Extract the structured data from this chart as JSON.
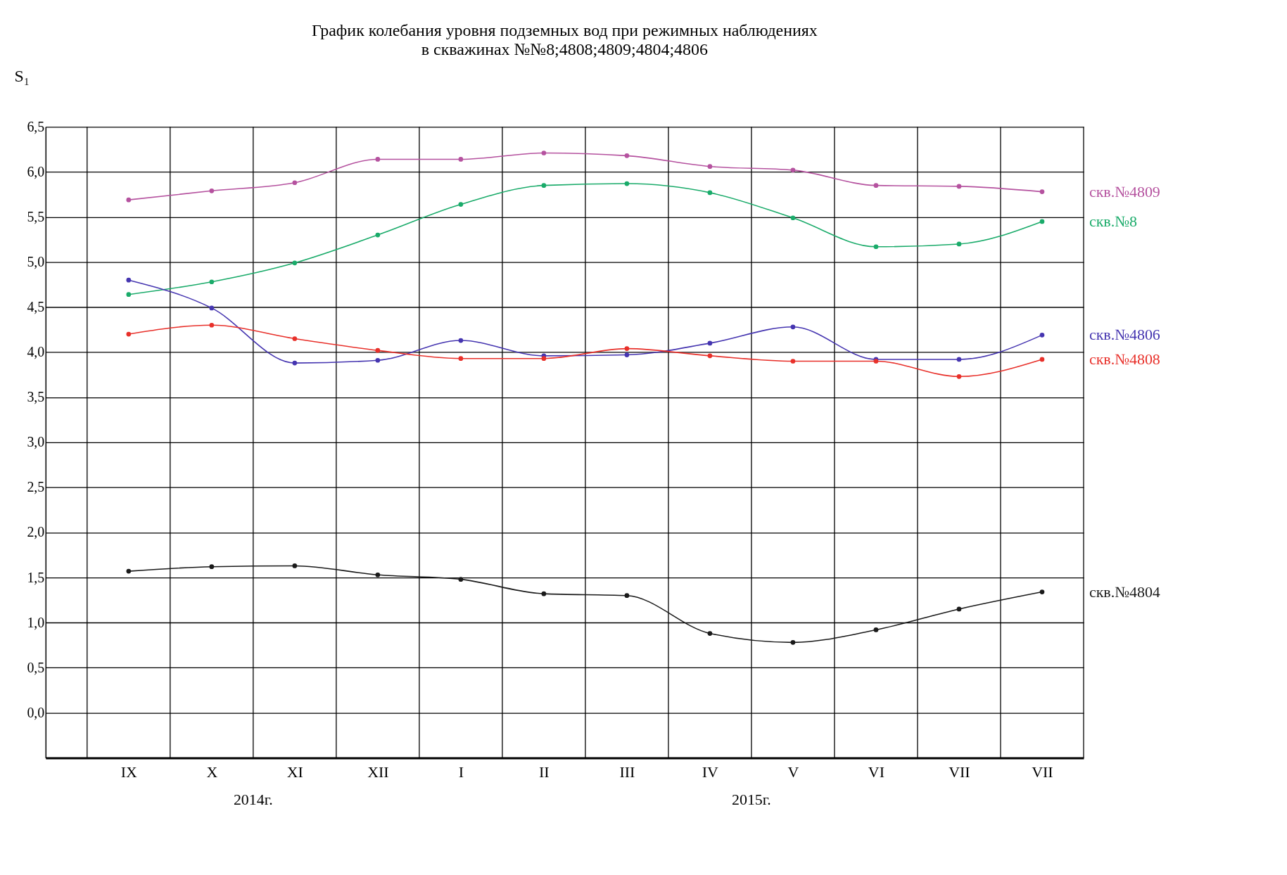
{
  "chart_data": {
    "type": "line",
    "title": "График колебания уровня подземных вод при режимных наблюдениях",
    "subtitle": "в скважинах №№8;4808;4809;4804;4806",
    "ylabel": "S₁",
    "categories": [
      "IX",
      "X",
      "XI",
      "XII",
      "I",
      "II",
      "III",
      "IV",
      "V",
      "VI",
      "VII",
      "VII"
    ],
    "ylim": [
      -0.5,
      6.5
    ],
    "yticks": [
      {
        "value": 0,
        "label": "0,0"
      },
      {
        "value": 0.5,
        "label": "0,5"
      },
      {
        "value": 1,
        "label": "1,0"
      },
      {
        "value": 1.5,
        "label": "1,5"
      },
      {
        "value": 2,
        "label": "2,0"
      },
      {
        "value": 2.5,
        "label": "2,5"
      },
      {
        "value": 3,
        "label": "3,0"
      },
      {
        "value": 3.5,
        "label": "3,5"
      },
      {
        "value": 4,
        "label": "4,0"
      },
      {
        "value": 4.5,
        "label": "4,5"
      },
      {
        "value": 5,
        "label": "5,0"
      },
      {
        "value": 5.5,
        "label": "5,5"
      },
      {
        "value": 6,
        "label": "6,0"
      },
      {
        "value": 6.5,
        "label": "6,5"
      }
    ],
    "grid": true,
    "marker": "circle",
    "line_style": "solid",
    "annotations": [
      "2014г.",
      "2015г."
    ],
    "series": [
      {
        "name": "скв.№4809",
        "color": "#b5529f",
        "values": [
          5.69,
          5.79,
          5.88,
          6.14,
          6.14,
          6.21,
          6.18,
          6.06,
          6.02,
          5.85,
          5.84,
          5.78
        ]
      },
      {
        "name": "скв.№8",
        "color": "#1aab6a",
        "values": [
          4.64,
          4.78,
          4.99,
          5.3,
          5.64,
          5.85,
          5.87,
          5.77,
          5.49,
          5.17,
          5.2,
          5.45
        ]
      },
      {
        "name": "скв.№4806",
        "color": "#4535b0",
        "values": [
          4.8,
          4.49,
          3.88,
          3.91,
          4.13,
          3.96,
          3.97,
          4.1,
          4.28,
          3.92,
          3.92,
          4.19
        ]
      },
      {
        "name": "скв.№4808",
        "color": "#e8302a",
        "values": [
          4.2,
          4.3,
          4.15,
          4.02,
          3.93,
          3.93,
          4.04,
          3.96,
          3.9,
          3.9,
          3.73,
          3.92
        ]
      },
      {
        "name": "скв.№4804",
        "color": "#1a1a1a",
        "values": [
          1.57,
          1.62,
          1.63,
          1.53,
          1.48,
          1.32,
          1.3,
          0.88,
          0.78,
          0.92,
          1.15,
          1.34
        ]
      }
    ]
  }
}
